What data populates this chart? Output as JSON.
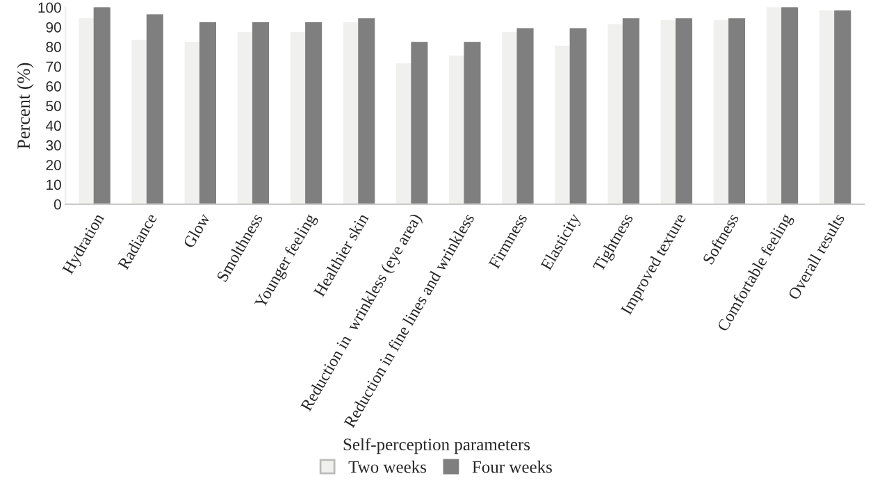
{
  "chart_data": {
    "type": "bar",
    "xlabel": "Self-perception parameters",
    "ylabel": "Percent (%)",
    "categories": [
      "Hydration",
      "Radiance",
      "Glow",
      "Smolthness",
      "Younger feeling",
      "Healthier skin",
      "Reduction in  wrinkless (eye area)",
      "Reduction in fine lines and wrinkless",
      "Firmness",
      "Elasticity",
      "Tightness",
      "Improved texture",
      "Softness",
      "Comfortable feeling",
      "Overall results"
    ],
    "series": [
      {
        "name": "Two weeks",
        "color": "#f0f0ee",
        "values": [
          94,
          83,
          82,
          87,
          87,
          92,
          71,
          75,
          87,
          80,
          91,
          93,
          93,
          100,
          98
        ]
      },
      {
        "name": "Four weeks",
        "color": "#7f7f7f",
        "values": [
          100,
          96,
          92,
          92,
          92,
          94,
          82,
          82,
          89,
          89,
          94,
          94,
          94,
          100,
          98
        ]
      }
    ],
    "ylim": [
      0,
      100
    ],
    "yticks": [
      0,
      10,
      20,
      30,
      40,
      50,
      60,
      70,
      80,
      90,
      100
    ],
    "grid": false,
    "legend": "bottom"
  }
}
